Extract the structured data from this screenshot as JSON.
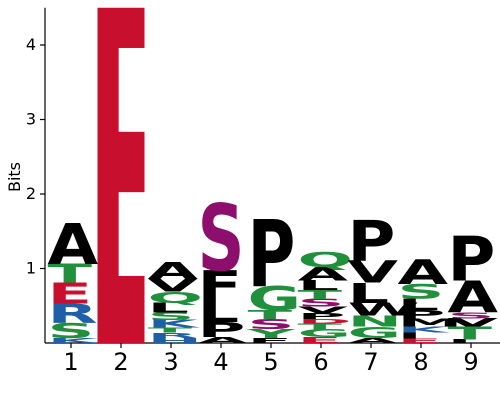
{
  "colors": {
    "hydrophobic": "#000000",
    "polar": "#21903C",
    "basic": "#1F5FA8",
    "acidic": "#C8102E",
    "amide": "#8E0E6E",
    "E_bar": "#C8102E"
  },
  "chart_data": {
    "type": "sequence-logo",
    "ylabel": "Bits",
    "ylim": [
      0,
      4.5
    ],
    "yticks": [
      "1",
      "2",
      "3",
      "4"
    ],
    "positions": [
      "1",
      "2",
      "3",
      "4",
      "5",
      "6",
      "7",
      "8",
      "9"
    ],
    "stacks": [
      [
        {
          "letter": "K",
          "bits": 0.07,
          "color": "basic"
        },
        {
          "letter": "S",
          "bits": 0.2,
          "color": "polar"
        },
        {
          "letter": "R",
          "bits": 0.26,
          "color": "basic"
        },
        {
          "letter": "E",
          "bits": 0.28,
          "color": "acidic"
        },
        {
          "letter": "T",
          "bits": 0.25,
          "color": "polar"
        },
        {
          "letter": "A",
          "bits": 0.55,
          "color": "hydrophobic"
        }
      ],
      [
        {
          "letter": "E",
          "bits": 4.5,
          "color": "acidic"
        }
      ],
      [
        {
          "letter": "H",
          "bits": 0.07,
          "color": "basic"
        },
        {
          "letter": "R",
          "bits": 0.07,
          "color": "basic"
        },
        {
          "letter": "T",
          "bits": 0.07,
          "color": "polar"
        },
        {
          "letter": "K",
          "bits": 0.1,
          "color": "basic"
        },
        {
          "letter": "S",
          "bits": 0.1,
          "color": "polar"
        },
        {
          "letter": "L",
          "bits": 0.13,
          "color": "hydrophobic"
        },
        {
          "letter": "Q",
          "bits": 0.15,
          "color": "polar"
        },
        {
          "letter": "V",
          "bits": 0.17,
          "color": "hydrophobic"
        },
        {
          "letter": "A",
          "bits": 0.23,
          "color": "hydrophobic"
        }
      ],
      [
        {
          "letter": "A",
          "bits": 0.08,
          "color": "hydrophobic"
        },
        {
          "letter": "P",
          "bits": 0.2,
          "color": "hydrophobic"
        },
        {
          "letter": "L",
          "bits": 0.3,
          "color": "hydrophobic"
        },
        {
          "letter": "F",
          "bits": 0.4,
          "color": "hydrophobic"
        },
        {
          "letter": "S",
          "bits": 0.9,
          "color": "amide"
        }
      ],
      [
        {
          "letter": "F",
          "bits": 0.07,
          "color": "hydrophobic"
        },
        {
          "letter": "Y",
          "bits": 0.12,
          "color": "polar"
        },
        {
          "letter": "S",
          "bits": 0.13,
          "color": "amide"
        },
        {
          "letter": "T",
          "bits": 0.12,
          "color": "polar"
        },
        {
          "letter": "G",
          "bits": 0.32,
          "color": "polar"
        },
        {
          "letter": "P",
          "bits": 0.9,
          "color": "hydrophobic"
        }
      ],
      [
        {
          "letter": "E",
          "bits": 0.08,
          "color": "acidic"
        },
        {
          "letter": "G",
          "bits": 0.1,
          "color": "polar"
        },
        {
          "letter": "T",
          "bits": 0.08,
          "color": "polar"
        },
        {
          "letter": "D",
          "bits": 0.06,
          "color": "acidic"
        },
        {
          "letter": "P",
          "bits": 0.08,
          "color": "hydrophobic"
        },
        {
          "letter": "V",
          "bits": 0.09,
          "color": "hydrophobic"
        },
        {
          "letter": "S",
          "bits": 0.1,
          "color": "amide"
        },
        {
          "letter": "T",
          "bits": 0.12,
          "color": "polar"
        },
        {
          "letter": "L",
          "bits": 0.13,
          "color": "hydrophobic"
        },
        {
          "letter": "A",
          "bits": 0.18,
          "color": "hydrophobic"
        },
        {
          "letter": "Q",
          "bits": 0.2,
          "color": "polar"
        }
      ],
      [
        {
          "letter": "A",
          "bits": 0.07,
          "color": "hydrophobic"
        },
        {
          "letter": "G",
          "bits": 0.15,
          "color": "polar"
        },
        {
          "letter": "N",
          "bits": 0.15,
          "color": "polar"
        },
        {
          "letter": "W",
          "bits": 0.17,
          "color": "hydrophobic"
        },
        {
          "letter": "L",
          "bits": 0.27,
          "color": "hydrophobic"
        },
        {
          "letter": "V",
          "bits": 0.3,
          "color": "hydrophobic"
        },
        {
          "letter": "P",
          "bits": 0.55,
          "color": "hydrophobic"
        }
      ],
      [
        {
          "letter": "E",
          "bits": 0.06,
          "color": "acidic"
        },
        {
          "letter": "I",
          "bits": 0.08,
          "color": "hydrophobic"
        },
        {
          "letter": "K",
          "bits": 0.08,
          "color": "basic"
        },
        {
          "letter": "M",
          "bits": 0.1,
          "color": "hydrophobic"
        },
        {
          "letter": "P",
          "bits": 0.12,
          "color": "hydrophobic"
        },
        {
          "letter": "L",
          "bits": 0.16,
          "color": "hydrophobic"
        },
        {
          "letter": "S",
          "bits": 0.19,
          "color": "polar"
        },
        {
          "letter": "A",
          "bits": 0.33,
          "color": "hydrophobic"
        }
      ],
      [
        {
          "letter": "I",
          "bits": 0.05,
          "color": "hydrophobic"
        },
        {
          "letter": "T",
          "bits": 0.17,
          "color": "polar"
        },
        {
          "letter": "V",
          "bits": 0.11,
          "color": "hydrophobic"
        },
        {
          "letter": "S",
          "bits": 0.08,
          "color": "amide"
        },
        {
          "letter": "A",
          "bits": 0.43,
          "color": "hydrophobic"
        },
        {
          "letter": "P",
          "bits": 0.6,
          "color": "hydrophobic"
        }
      ]
    ]
  }
}
